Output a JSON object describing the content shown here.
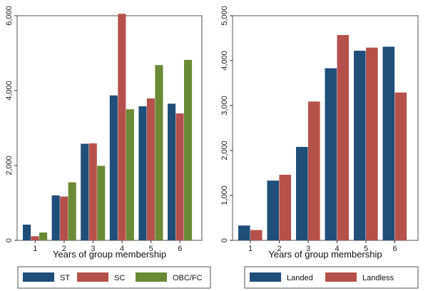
{
  "chart_data": [
    {
      "type": "bar",
      "categories": [
        "1",
        "2",
        "3",
        "4",
        "5",
        "6"
      ],
      "xlabel": "Years of group membership",
      "ylabel": "",
      "ylim": [
        0,
        6000
      ],
      "yticks": [
        0,
        2000,
        4000,
        6000
      ],
      "ytick_labels": [
        "0",
        "2,000",
        "4,000",
        "6,000"
      ],
      "grid": false,
      "legend_position": "bottom",
      "series": [
        {
          "name": "ST",
          "color": "#1f4e79",
          "values": [
            420,
            1200,
            2580,
            3870,
            3580,
            3650
          ]
        },
        {
          "name": "SC",
          "color": "#b5514b",
          "values": [
            110,
            1170,
            2590,
            6050,
            3790,
            3390
          ]
        },
        {
          "name": "OBC/FC",
          "color": "#6a8a35",
          "values": [
            210,
            1550,
            1990,
            3500,
            4680,
            4820
          ]
        }
      ]
    },
    {
      "type": "bar",
      "categories": [
        "1",
        "2",
        "3",
        "4",
        "5",
        "6"
      ],
      "xlabel": "Years of group membership",
      "ylabel": "",
      "ylim": [
        0,
        5000
      ],
      "yticks": [
        0,
        1000,
        2000,
        3000,
        4000,
        5000
      ],
      "ytick_labels": [
        "0",
        "1,000",
        "2,000",
        "3,000",
        "4,000",
        "5,000"
      ],
      "grid": false,
      "legend_position": "bottom",
      "series": [
        {
          "name": "Landed",
          "color": "#1f4e79",
          "values": [
            330,
            1330,
            2080,
            3830,
            4220,
            4310
          ]
        },
        {
          "name": "Landless",
          "color": "#b5514b",
          "values": [
            230,
            1460,
            3090,
            4570,
            4290,
            3290
          ]
        }
      ]
    }
  ]
}
